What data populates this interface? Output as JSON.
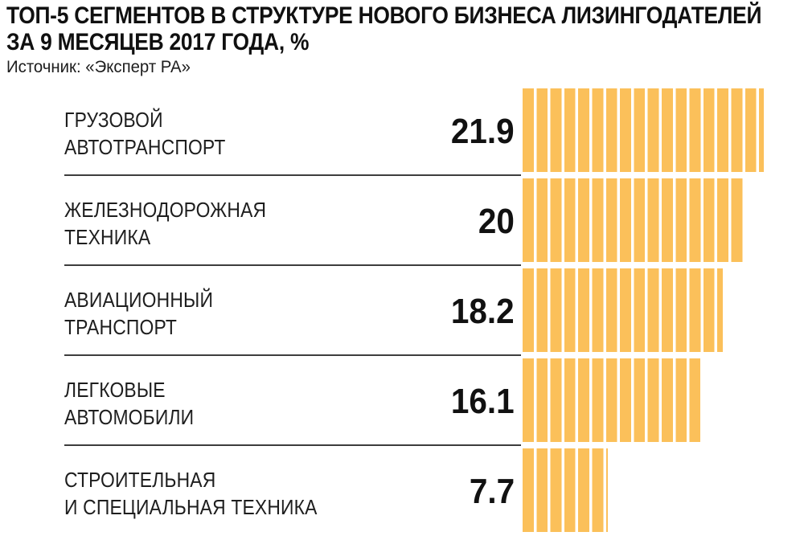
{
  "header": {
    "title_line1": "ТОП-5 СЕГМЕНТОВ В СТРУКТУРЕ НОВОГО БИЗНЕСА ЛИЗИНГОДАТЕЛЕЙ",
    "title_line2": "ЗА 9 МЕСЯЦЕВ 2017 ГОДА, %",
    "source": "Источник: «Эксперт РА»"
  },
  "chart_data": {
    "type": "bar",
    "orientation": "horizontal",
    "title": "ТОП-5 СЕГМЕНТОВ В СТРУКТУРЕ НОВОГО БИЗНЕСА ЛИЗИНГОДАТЕЛЕЙ ЗА 9 МЕСЯЦЕВ 2017 ГОДА, %",
    "source": "Источник: «Эксперт РА»",
    "unit": "%",
    "categories": [
      "ГРУЗОВОЙ АВТОТРАНСПОРТ",
      "ЖЕЛЕЗНОДОРОЖНАЯ ТЕХНИКА",
      "АВИАЦИОННЫЙ ТРАНСПОРТ",
      "ЛЕГКОВЫЕ АВТОМОБИЛИ",
      "СТРОИТЕЛЬНАЯ И СПЕЦИАЛЬНАЯ ТЕХНИКА"
    ],
    "category_lines": [
      [
        "ГРУЗОВОЙ",
        "АВТОТРАНСПОРТ"
      ],
      [
        "ЖЕЛЕЗНОДОРОЖНАЯ",
        "ТЕХНИКА"
      ],
      [
        "АВИАЦИОННЫЙ",
        "ТРАНСПОРТ"
      ],
      [
        "ЛЕГКОВЫЕ",
        "АВТОМОБИЛИ"
      ],
      [
        "СТРОИТЕЛЬНАЯ",
        "И СПЕЦИАЛЬНАЯ ТЕХНИКА"
      ]
    ],
    "values": [
      21.9,
      20,
      18.2,
      16.1,
      7.7
    ],
    "value_labels": [
      "21.9",
      "20",
      "18.2",
      "16.1",
      "7.7"
    ],
    "xlim": [
      0,
      21.9
    ],
    "bar_color": "#FBC05A",
    "bar_gap_color": "#FFFFFF",
    "bar_style": "vertical-stripes",
    "legend": "none",
    "grid": "off"
  }
}
